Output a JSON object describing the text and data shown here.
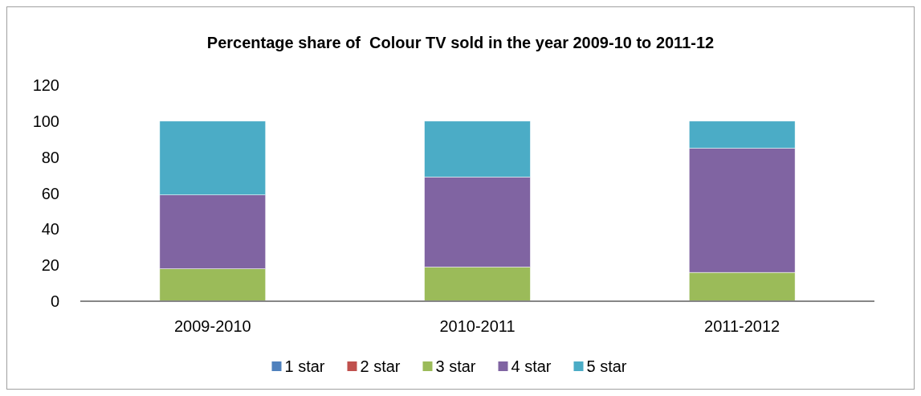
{
  "chart_data": {
    "type": "bar",
    "title": "Percentage share of  Colour TV sold in the year 2009-10 to 2011-12",
    "categories": [
      "2009-2010",
      "2010-2011",
      "2011-2012"
    ],
    "stacked": true,
    "series": [
      {
        "name": "1 star",
        "color": "#4f81bd",
        "values": [
          0,
          0,
          0
        ]
      },
      {
        "name": "2 star",
        "color": "#c0504d",
        "values": [
          0,
          0,
          0
        ]
      },
      {
        "name": "3 star",
        "color": "#9bbb59",
        "values": [
          18,
          19,
          16
        ]
      },
      {
        "name": "4 star",
        "color": "#8064a2",
        "values": [
          41,
          50,
          69
        ]
      },
      {
        "name": "5 star",
        "color": "#4bacc6",
        "values": [
          41,
          31,
          15
        ]
      }
    ],
    "ylim": [
      0,
      120
    ],
    "yticks": [
      0,
      20,
      40,
      60,
      80,
      100,
      120
    ],
    "grid": false,
    "legend": "bottom"
  }
}
